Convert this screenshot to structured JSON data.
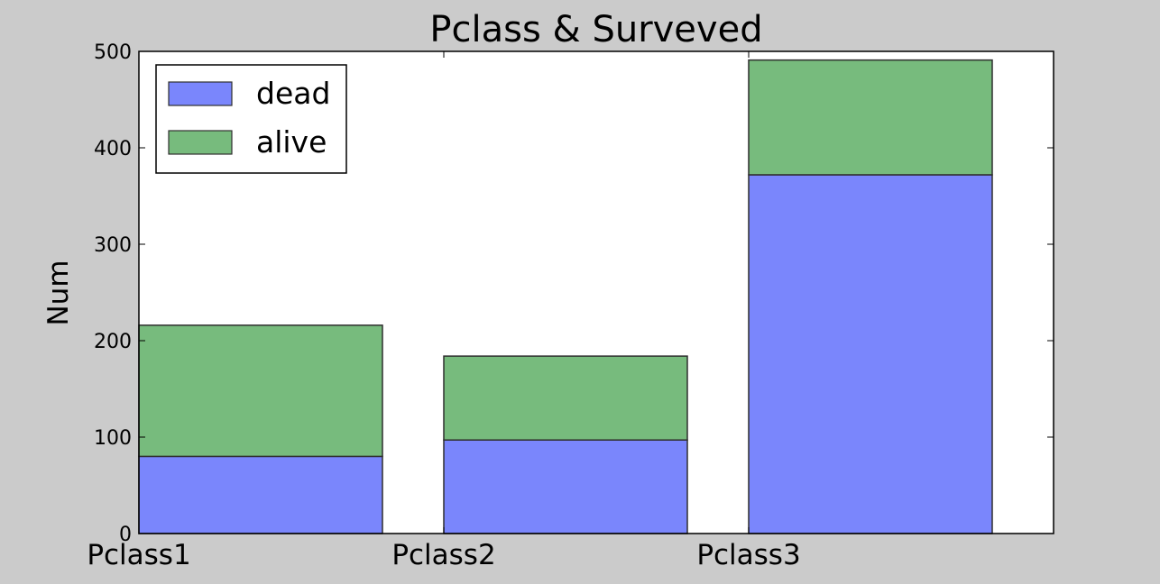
{
  "chart_data": {
    "type": "bar",
    "stacked": true,
    "title": "Pclass & Surveved",
    "xlabel": "",
    "ylabel": "Num",
    "categories": [
      "Pclass1",
      "Pclass2",
      "Pclass3"
    ],
    "series": [
      {
        "name": "dead",
        "values": [
          80,
          97,
          372
        ],
        "color": "#7a86fc"
      },
      {
        "name": "alive",
        "values": [
          136,
          87,
          119
        ],
        "color": "#77bb7d"
      }
    ],
    "ylim": [
      0,
      500
    ],
    "yticks": [
      0,
      100,
      200,
      300,
      400,
      500
    ],
    "grid": false,
    "legend_position": "top-left",
    "background_color": "#cbcbcb",
    "plot_background_color": "#ffffff"
  }
}
